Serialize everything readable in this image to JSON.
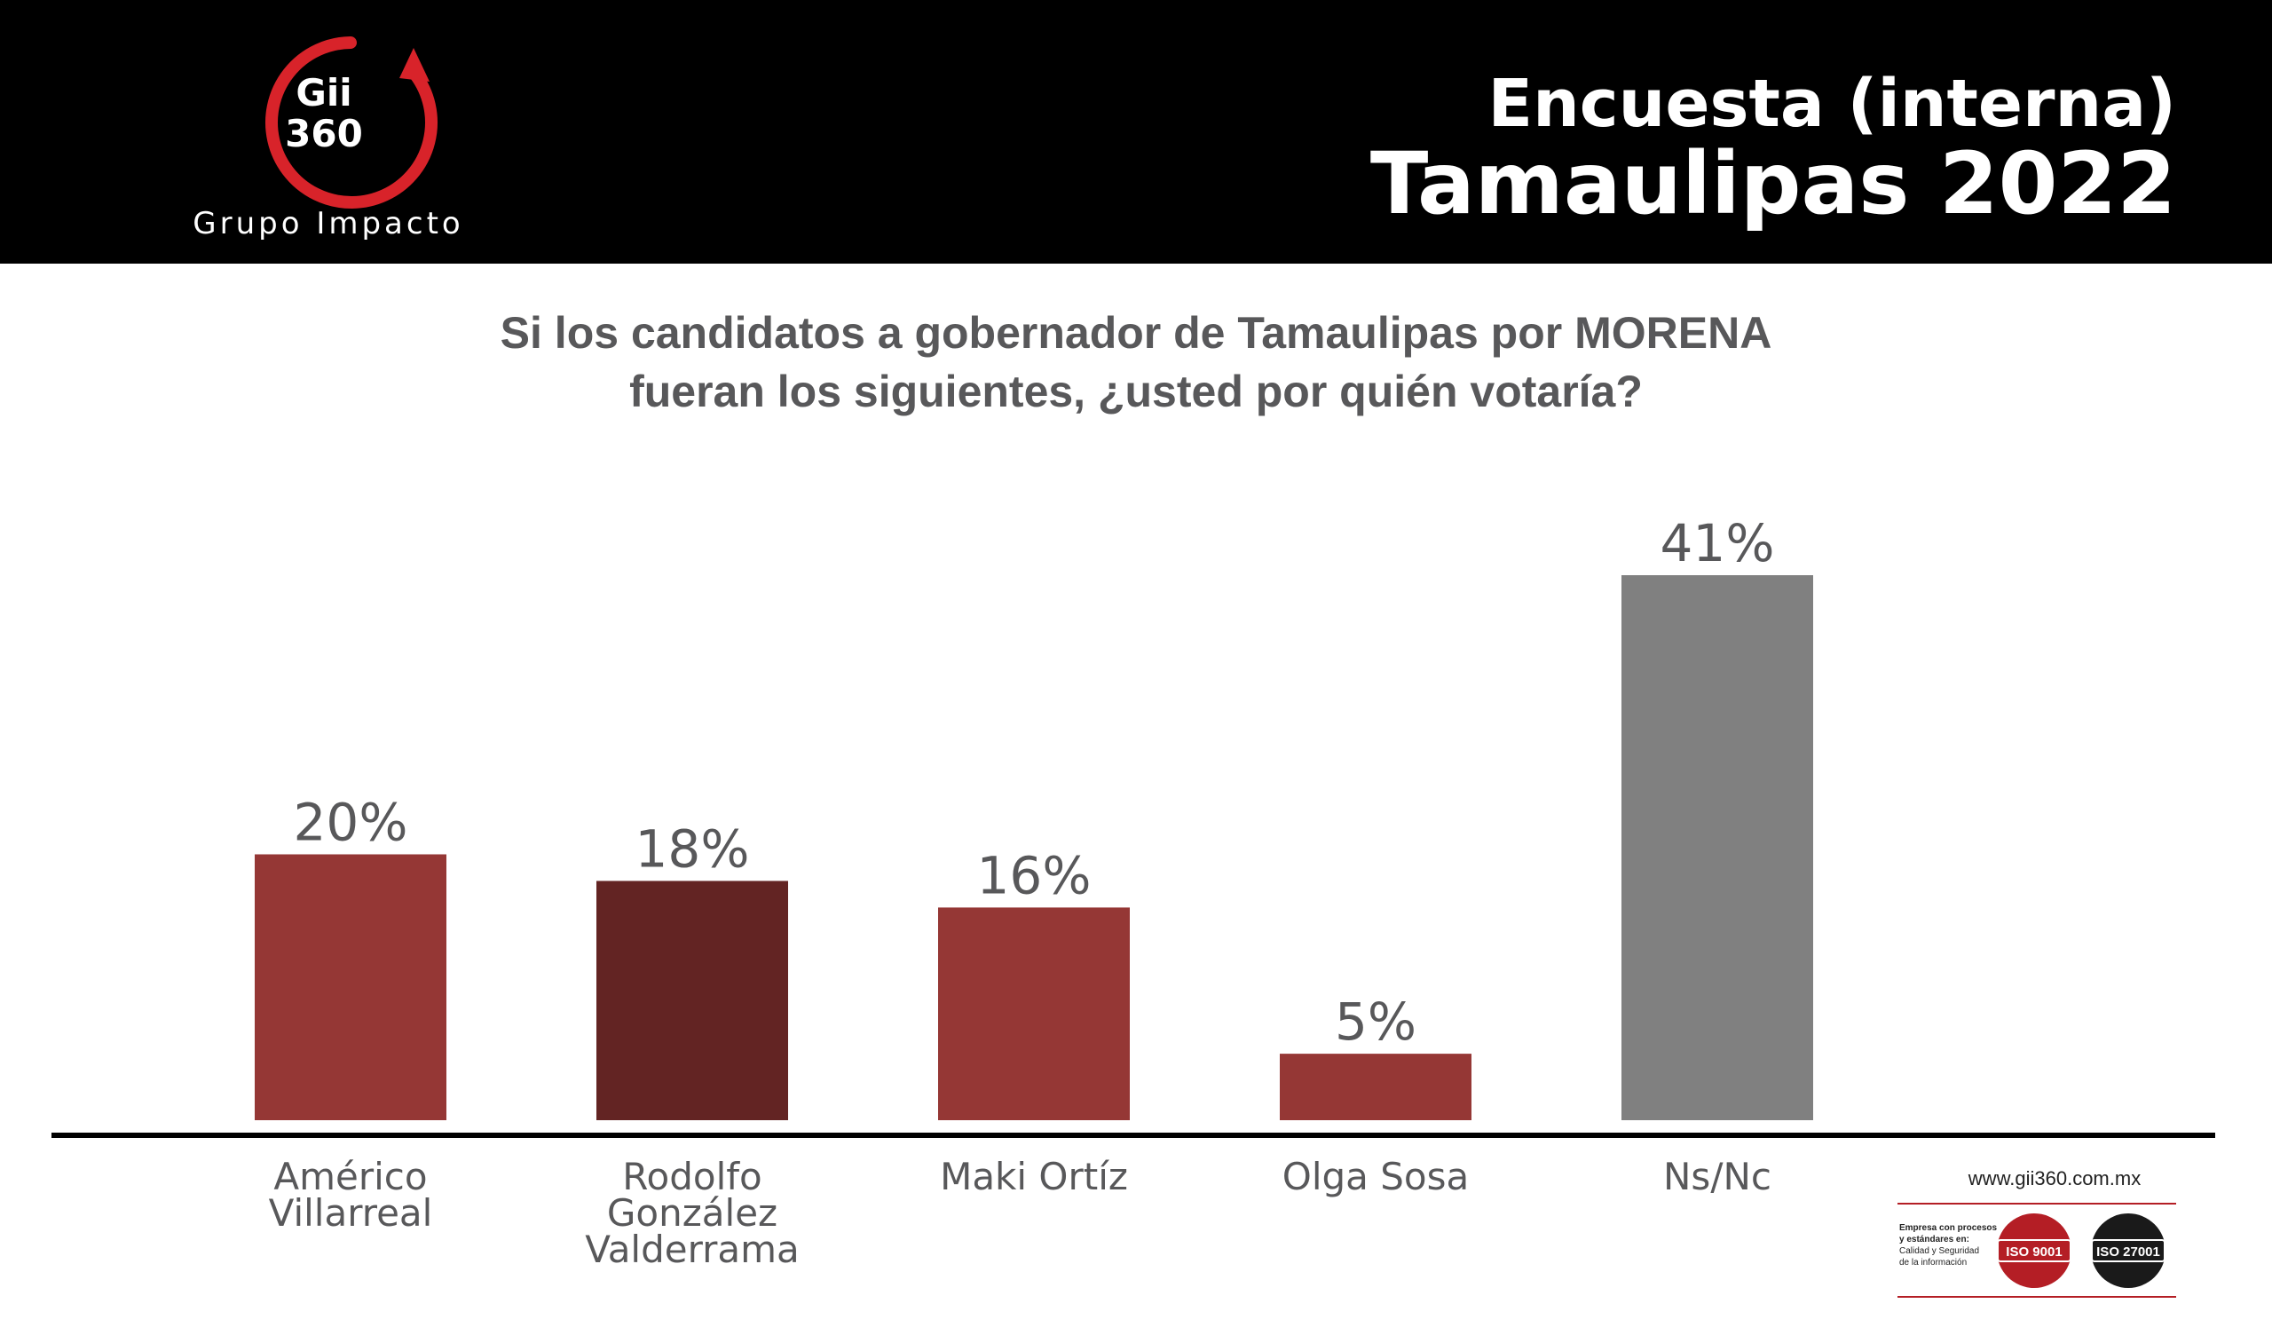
{
  "brand": {
    "logo_line1": "Gii",
    "logo_line2": "360",
    "name": "Grupo Impacto"
  },
  "header": {
    "line1": "Encuesta (interna)",
    "line2": "Tamaulipas 2022"
  },
  "question": {
    "line1": "Si los candidatos a gobernador de Tamaulipas por MORENA",
    "line2": "fueran los siguientes, ¿usted por quién votaría?"
  },
  "chart_data": {
    "type": "bar",
    "categories": [
      [
        "Américo",
        "Villarreal"
      ],
      [
        "Rodolfo",
        "González",
        "Valderrama"
      ],
      [
        "Maki Ortíz"
      ],
      [
        "Olga Sosa"
      ],
      [
        "Ns/Nc"
      ]
    ],
    "values": [
      20,
      18,
      16,
      5,
      41
    ],
    "data_labels": [
      "20%",
      "18%",
      "16%",
      "5%",
      "41%"
    ],
    "colors": [
      "#953735",
      "#632423",
      "#953735",
      "#953735",
      "#808080"
    ],
    "ylim": [
      0,
      41
    ],
    "grid": false,
    "legend": "none"
  },
  "footer": {
    "website": "www.gii360.com.mx",
    "cert_line1": "Empresa con procesos",
    "cert_line2": "y estándares en:",
    "cert_line3": "Calidad y Seguridad",
    "cert_line4": "de la información",
    "iso1": "ISO 9001",
    "iso2": "ISO 27001"
  },
  "colors": {
    "brand_red": "#d8232a",
    "header_bg": "#000000",
    "text_gray": "#58585a"
  }
}
